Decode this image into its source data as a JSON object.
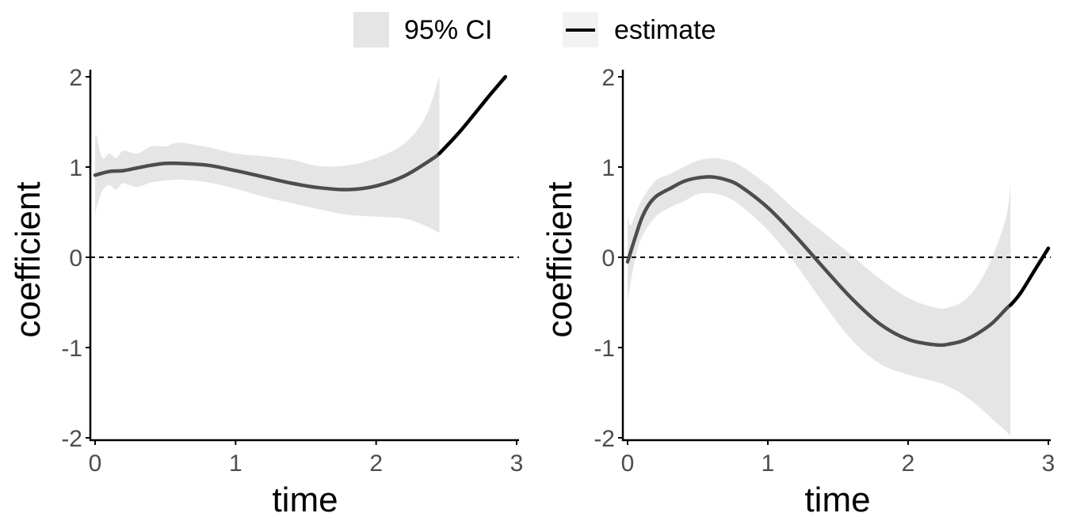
{
  "legend": {
    "ci_label": "95% CI",
    "estimate_label": "estimate"
  },
  "colors": {
    "ci_fill": "#e5e5e5",
    "estimate_in_ci": "#4d4d4d",
    "estimate_out_ci": "#000000",
    "axis": "#000000",
    "tick_text": "#4d4d4d",
    "reference_line": "#000000"
  },
  "chart_data": [
    {
      "type": "line",
      "panel": "left",
      "xlabel": "time",
      "ylabel": "coefficient",
      "xlim": [
        0,
        3
      ],
      "ylim": [
        -2,
        2
      ],
      "xticks": [
        "0",
        "1",
        "2",
        "3"
      ],
      "yticks": [
        "-2",
        "-1",
        "0",
        "1",
        "2"
      ],
      "reference_line_y": 0,
      "ci_end_x": 2.45,
      "series": [
        {
          "name": "estimate",
          "x": [
            0.0,
            0.1,
            0.2,
            0.3,
            0.4,
            0.5,
            0.6,
            0.8,
            1.0,
            1.2,
            1.4,
            1.6,
            1.8,
            2.0,
            2.2,
            2.4,
            2.45,
            2.6,
            2.8,
            2.92
          ],
          "y": [
            0.91,
            0.95,
            0.96,
            0.99,
            1.02,
            1.04,
            1.04,
            1.02,
            0.96,
            0.89,
            0.82,
            0.77,
            0.75,
            0.79,
            0.9,
            1.09,
            1.15,
            1.4,
            1.78,
            2.0
          ]
        },
        {
          "name": "95% CI",
          "x": [
            0.0,
            0.01,
            0.05,
            0.1,
            0.15,
            0.2,
            0.3,
            0.4,
            0.5,
            0.6,
            0.8,
            1.0,
            1.2,
            1.4,
            1.6,
            1.8,
            2.0,
            2.2,
            2.35,
            2.45
          ],
          "lower": [
            0.45,
            0.55,
            0.73,
            0.8,
            0.75,
            0.82,
            0.78,
            0.83,
            0.85,
            0.86,
            0.83,
            0.76,
            0.67,
            0.6,
            0.53,
            0.47,
            0.45,
            0.43,
            0.35,
            0.27
          ],
          "upper": [
            1.3,
            1.35,
            1.1,
            1.15,
            1.1,
            1.18,
            1.15,
            1.23,
            1.23,
            1.27,
            1.22,
            1.15,
            1.12,
            1.08,
            1.01,
            1.02,
            1.1,
            1.26,
            1.55,
            2.0
          ]
        }
      ]
    },
    {
      "type": "line",
      "panel": "right",
      "xlabel": "time",
      "ylabel": "coefficient",
      "xlim": [
        0,
        3
      ],
      "ylim": [
        -2,
        2
      ],
      "xticks": [
        "0",
        "1",
        "2",
        "3"
      ],
      "yticks": [
        "-2",
        "-1",
        "0",
        "1",
        "2"
      ],
      "reference_line_y": 0,
      "ci_end_x": 2.73,
      "series": [
        {
          "name": "estimate",
          "x": [
            0.0,
            0.05,
            0.1,
            0.15,
            0.2,
            0.25,
            0.3,
            0.4,
            0.5,
            0.6,
            0.7,
            0.8,
            1.0,
            1.2,
            1.4,
            1.6,
            1.8,
            2.0,
            2.2,
            2.3,
            2.4,
            2.5,
            2.6,
            2.7,
            2.73,
            2.8,
            2.9,
            3.0
          ],
          "y": [
            -0.05,
            0.2,
            0.43,
            0.58,
            0.67,
            0.72,
            0.76,
            0.84,
            0.88,
            0.89,
            0.86,
            0.79,
            0.55,
            0.23,
            -0.12,
            -0.46,
            -0.74,
            -0.91,
            -0.97,
            -0.96,
            -0.92,
            -0.84,
            -0.73,
            -0.57,
            -0.53,
            -0.4,
            -0.15,
            0.1
          ]
        },
        {
          "name": "95% CI",
          "x": [
            0.0,
            0.02,
            0.05,
            0.1,
            0.2,
            0.3,
            0.4,
            0.5,
            0.6,
            0.7,
            0.8,
            1.0,
            1.2,
            1.4,
            1.6,
            1.8,
            2.0,
            2.2,
            2.3,
            2.4,
            2.5,
            2.6,
            2.7,
            2.73
          ],
          "lower": [
            -0.5,
            -0.3,
            -0.05,
            0.22,
            0.45,
            0.55,
            0.62,
            0.7,
            0.71,
            0.67,
            0.58,
            0.3,
            -0.08,
            -0.52,
            -0.92,
            -1.18,
            -1.3,
            -1.38,
            -1.44,
            -1.53,
            -1.65,
            -1.79,
            -1.93,
            -1.98
          ],
          "upper": [
            0.45,
            0.35,
            0.45,
            0.63,
            0.85,
            0.92,
            1.0,
            1.07,
            1.1,
            1.08,
            1.02,
            0.8,
            0.52,
            0.27,
            0.02,
            -0.24,
            -0.45,
            -0.56,
            -0.55,
            -0.48,
            -0.3,
            0.0,
            0.45,
            0.82
          ]
        }
      ]
    }
  ]
}
